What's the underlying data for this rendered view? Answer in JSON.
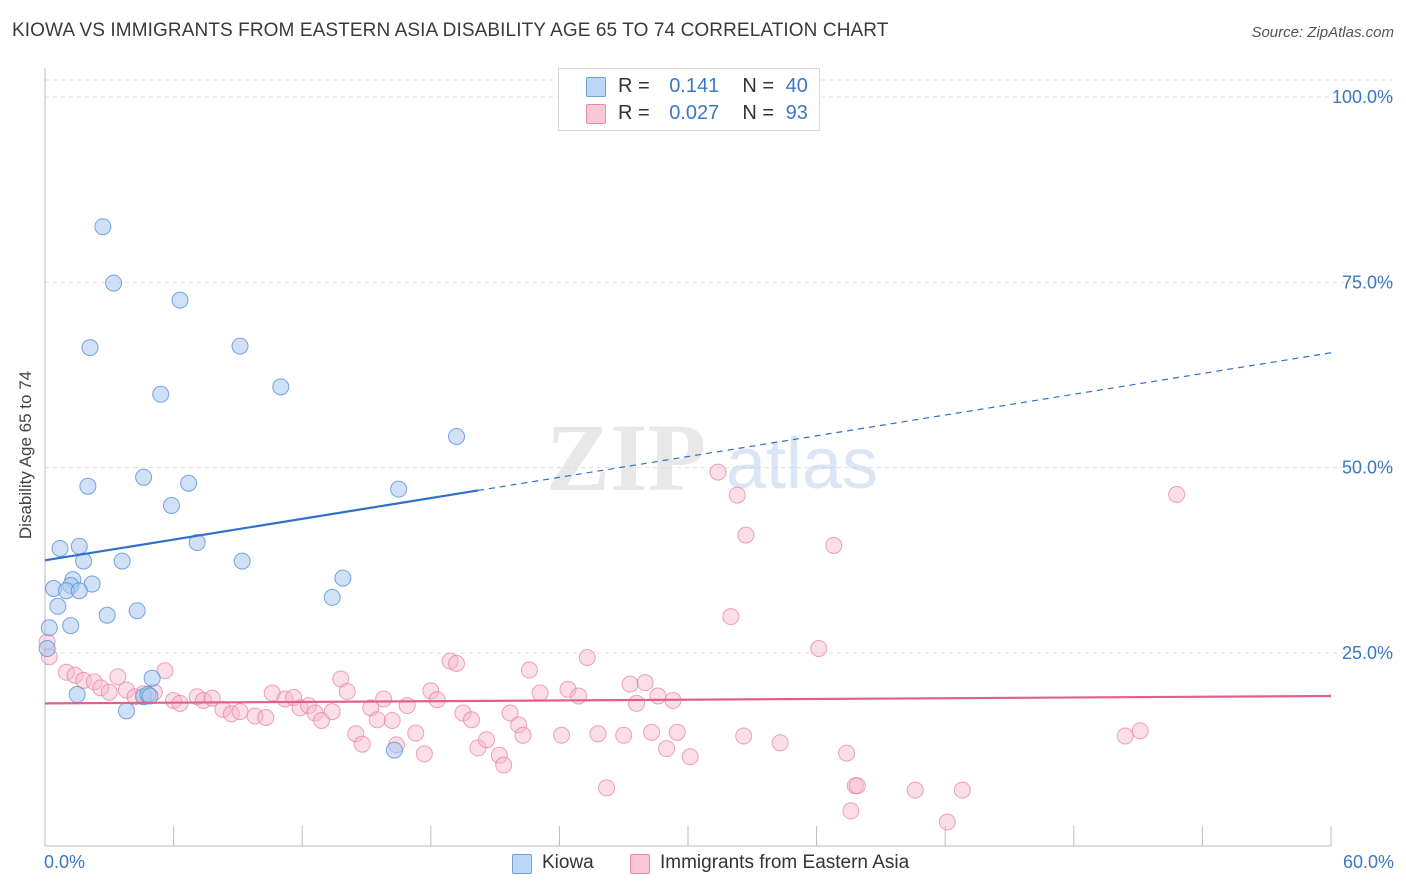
{
  "title": "KIOWA VS IMMIGRANTS FROM EASTERN ASIA DISABILITY AGE 65 TO 74 CORRELATION CHART",
  "source": "Source: ZipAtlas.com",
  "watermark": {
    "zip": "ZIP",
    "atlas": "atlas"
  },
  "legend_top": {
    "kiowa": {
      "r_label": "R =",
      "r_value": "0.141",
      "n_label": "N =",
      "n_value": "40"
    },
    "immigrants": {
      "r_label": "R =",
      "r_value": "0.027",
      "n_label": "N =",
      "n_value": "93"
    }
  },
  "legend_bottom": {
    "kiowa": "Kiowa",
    "immigrants": "Immigrants from Eastern Asia"
  },
  "x_axis_labels": {
    "min": "0.0%",
    "max": "60.0%"
  },
  "colors": {
    "kiowa_fill": "#a9c9f0",
    "kiowa_stroke": "#5b8fd4",
    "kiowa_line": "#2f6fcc",
    "imm_fill": "#f7b6ca",
    "imm_stroke": "#e57ea0",
    "imm_line": "#e0608a",
    "grid": "#dddddd",
    "axis_label": "#3b78c4"
  },
  "chart_data": {
    "type": "scatter",
    "title": "KIOWA VS IMMIGRANTS FROM EASTERN ASIA DISABILITY AGE 65 TO 74 CORRELATION CHART",
    "xlabel": "",
    "ylabel": "Disability Age 65 to 74",
    "xlim": [
      0,
      60
    ],
    "ylim": [
      0,
      102
    ],
    "x_ticks": [
      0,
      6,
      12,
      18,
      24,
      30,
      36,
      42,
      48,
      54,
      60
    ],
    "y_ticks": [
      {
        "value": 25,
        "label": "25.0%"
      },
      {
        "value": 50,
        "label": "50.0%"
      },
      {
        "value": 75,
        "label": "75.0%"
      },
      {
        "value": 100,
        "label": "100.0%"
      }
    ],
    "grid": true,
    "legend_position": "top-center",
    "series": [
      {
        "name": "Kiowa",
        "r": 0.141,
        "n": 40,
        "trend": {
          "x0": 0,
          "y0": 37.5,
          "x1": 60,
          "y1": 65.5,
          "solid_until_x": 20.2
        },
        "points": [
          [
            2.7,
            82.5
          ],
          [
            3.2,
            74.9
          ],
          [
            6.3,
            72.6
          ],
          [
            2.1,
            66.2
          ],
          [
            9.1,
            66.4
          ],
          [
            11.0,
            60.9
          ],
          [
            5.4,
            59.9
          ],
          [
            19.2,
            54.2
          ],
          [
            4.6,
            48.7
          ],
          [
            6.7,
            47.9
          ],
          [
            2.0,
            47.5
          ],
          [
            16.5,
            47.1
          ],
          [
            5.9,
            44.9
          ],
          [
            7.1,
            39.9
          ],
          [
            0.7,
            39.1
          ],
          [
            1.6,
            39.4
          ],
          [
            1.8,
            37.4
          ],
          [
            3.6,
            37.4
          ],
          [
            9.2,
            37.4
          ],
          [
            13.9,
            35.1
          ],
          [
            1.3,
            34.9
          ],
          [
            0.4,
            33.7
          ],
          [
            1.2,
            34.1
          ],
          [
            2.2,
            34.3
          ],
          [
            1.0,
            33.4
          ],
          [
            1.6,
            33.4
          ],
          [
            13.4,
            32.5
          ],
          [
            0.6,
            31.3
          ],
          [
            4.3,
            30.7
          ],
          [
            2.9,
            30.1
          ],
          [
            1.2,
            28.7
          ],
          [
            0.2,
            28.4
          ],
          [
            0.1,
            25.6
          ],
          [
            5.0,
            21.6
          ],
          [
            1.5,
            19.4
          ],
          [
            4.6,
            19.1
          ],
          [
            4.8,
            19.4
          ],
          [
            3.8,
            17.2
          ],
          [
            16.3,
            11.9
          ],
          [
            4.9,
            19.2
          ]
        ]
      },
      {
        "name": "Immigrants from Eastern Asia",
        "r": 0.027,
        "n": 93,
        "trend": {
          "x0": 0,
          "y0": 18.2,
          "x1": 60,
          "y1": 19.2
        },
        "points": [
          [
            0.1,
            26.5
          ],
          [
            0.2,
            24.5
          ],
          [
            1.0,
            22.4
          ],
          [
            1.4,
            22.0
          ],
          [
            1.8,
            21.3
          ],
          [
            2.3,
            21.1
          ],
          [
            3.4,
            21.8
          ],
          [
            5.6,
            22.6
          ],
          [
            2.6,
            20.3
          ],
          [
            3.0,
            19.7
          ],
          [
            3.8,
            20.0
          ],
          [
            4.2,
            19.1
          ],
          [
            4.6,
            19.5
          ],
          [
            5.1,
            19.7
          ],
          [
            6.0,
            18.6
          ],
          [
            6.3,
            18.2
          ],
          [
            7.1,
            19.1
          ],
          [
            7.4,
            18.6
          ],
          [
            7.8,
            18.9
          ],
          [
            8.3,
            17.4
          ],
          [
            8.7,
            16.8
          ],
          [
            9.1,
            17.1
          ],
          [
            9.8,
            16.5
          ],
          [
            10.3,
            16.3
          ],
          [
            10.6,
            19.6
          ],
          [
            11.2,
            18.8
          ],
          [
            11.6,
            19.0
          ],
          [
            11.9,
            17.6
          ],
          [
            12.3,
            17.9
          ],
          [
            12.6,
            16.9
          ],
          [
            12.9,
            15.9
          ],
          [
            13.4,
            17.1
          ],
          [
            13.8,
            21.5
          ],
          [
            14.1,
            19.8
          ],
          [
            14.5,
            14.1
          ],
          [
            14.8,
            12.7
          ],
          [
            15.2,
            17.6
          ],
          [
            15.5,
            16.0
          ],
          [
            15.8,
            18.8
          ],
          [
            16.2,
            15.9
          ],
          [
            16.4,
            12.6
          ],
          [
            16.9,
            17.9
          ],
          [
            17.3,
            14.2
          ],
          [
            17.7,
            11.4
          ],
          [
            18.0,
            19.9
          ],
          [
            18.3,
            18.7
          ],
          [
            18.9,
            23.9
          ],
          [
            19.2,
            23.6
          ],
          [
            19.5,
            16.9
          ],
          [
            19.9,
            16.0
          ],
          [
            20.2,
            12.2
          ],
          [
            20.6,
            13.3
          ],
          [
            21.2,
            11.2
          ],
          [
            21.4,
            9.9
          ],
          [
            21.7,
            16.9
          ],
          [
            22.1,
            15.3
          ],
          [
            22.3,
            13.9
          ],
          [
            22.6,
            22.7
          ],
          [
            23.1,
            19.6
          ],
          [
            24.1,
            13.9
          ],
          [
            24.4,
            20.1
          ],
          [
            24.9,
            19.2
          ],
          [
            25.3,
            24.4
          ],
          [
            25.8,
            14.1
          ],
          [
            26.2,
            6.8
          ],
          [
            27.0,
            13.9
          ],
          [
            27.3,
            20.8
          ],
          [
            27.6,
            18.2
          ],
          [
            28.0,
            21.0
          ],
          [
            28.3,
            14.3
          ],
          [
            28.6,
            19.2
          ],
          [
            29.0,
            12.1
          ],
          [
            29.5,
            14.3
          ],
          [
            30.1,
            11.0
          ],
          [
            31.4,
            49.4
          ],
          [
            32.3,
            46.3
          ],
          [
            32.6,
            13.8
          ],
          [
            32.7,
            40.9
          ],
          [
            32.0,
            29.9
          ],
          [
            34.3,
            12.9
          ],
          [
            36.1,
            25.6
          ],
          [
            36.8,
            39.5
          ],
          [
            37.4,
            11.5
          ],
          [
            37.6,
            3.7
          ],
          [
            37.8,
            7.1
          ],
          [
            37.9,
            7.1
          ],
          [
            40.6,
            6.5
          ],
          [
            42.1,
            2.2
          ],
          [
            42.8,
            6.5
          ],
          [
            50.4,
            13.8
          ],
          [
            51.1,
            14.5
          ],
          [
            52.8,
            46.4
          ],
          [
            29.3,
            18.6
          ]
        ]
      }
    ]
  }
}
